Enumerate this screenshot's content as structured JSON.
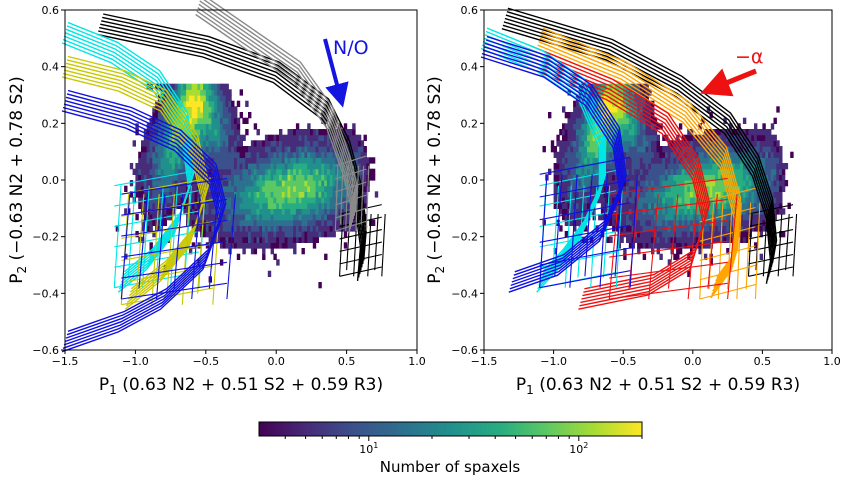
{
  "chart_data": [
    {
      "type": "scatter",
      "panel": "left",
      "title": "",
      "xlabel": "P$_1$ (0.63 N2 + 0.51 S2 + 0.59 R3)",
      "xlabel_main": "P",
      "xlabel_sub": "1",
      "xlabel_rest": " (0.63 N2 + 0.51 S2 + 0.59 R3)",
      "ylabel_main": "P",
      "ylabel_sub": "2",
      "ylabel_rest": " (−0.63 N2 + 0.78 S2)",
      "xlim": [
        -1.5,
        1.0
      ],
      "ylim": [
        -0.6,
        0.6
      ],
      "xticks": [
        "−1.5",
        "−1.0",
        "−0.5",
        "0.0",
        "0.5",
        "1.0"
      ],
      "xtick_values": [
        -1.5,
        -1.0,
        -0.5,
        0.0,
        0.5,
        1.0
      ],
      "yticks": [
        "−0.6",
        "−0.4",
        "−0.2",
        "0.0",
        "0.2",
        "0.4",
        "0.6"
      ],
      "ytick_values": [
        -0.6,
        -0.4,
        -0.2,
        0.0,
        0.2,
        0.4,
        0.6
      ],
      "grid": false,
      "annotation": {
        "text": "N/O",
        "color": "#1515e0",
        "x": 0.45,
        "y": 0.47,
        "arrow_from": [
          0.38,
          0.5
        ],
        "arrow_to": [
          0.49,
          0.29
        ]
      },
      "series": [
        {
          "color": "#000000",
          "band": [
            [
              -1.25,
              0.55
            ],
            [
              -0.5,
              0.47
            ],
            [
              0.0,
              0.38
            ],
            [
              0.35,
              0.25
            ],
            [
              0.5,
              0.1
            ],
            [
              0.58,
              -0.05
            ],
            [
              0.62,
              -0.2
            ],
            [
              0.6,
              -0.32
            ]
          ],
          "grid_end": [
            0.45,
            0.75,
            -0.34,
            -0.12
          ]
        },
        {
          "color": "#8a8a8a",
          "band": [
            [
              -0.55,
              0.62
            ],
            [
              -0.2,
              0.5
            ],
            [
              0.15,
              0.38
            ],
            [
              0.38,
              0.22
            ],
            [
              0.5,
              0.05
            ],
            [
              0.55,
              -0.05
            ],
            [
              0.54,
              -0.15
            ]
          ],
          "grid_end": [
            0.42,
            0.64,
            -0.18,
            0.05
          ]
        },
        {
          "color": "#00e5e5",
          "band": [
            [
              -1.5,
              0.52
            ],
            [
              -1.15,
              0.45
            ],
            [
              -0.85,
              0.35
            ],
            [
              -0.65,
              0.2
            ],
            [
              -0.6,
              0.0
            ],
            [
              -0.7,
              -0.15
            ],
            [
              -0.9,
              -0.28
            ],
            [
              -1.1,
              -0.36
            ]
          ],
          "grid_end": [
            -1.15,
            -0.55,
            -0.38,
            -0.02
          ]
        },
        {
          "color": "#c8c800",
          "band": [
            [
              -1.5,
              0.4
            ],
            [
              -1.1,
              0.35
            ],
            [
              -0.8,
              0.28
            ],
            [
              -0.58,
              0.12
            ],
            [
              -0.5,
              -0.05
            ],
            [
              -0.6,
              -0.2
            ],
            [
              -0.8,
              -0.32
            ],
            [
              -1.05,
              -0.42
            ]
          ],
          "grid_end": [
            -1.1,
            -0.45,
            -0.44,
            -0.05
          ]
        },
        {
          "color": "#1010e0",
          "band": [
            [
              -1.5,
              0.28
            ],
            [
              -1.05,
              0.22
            ],
            [
              -0.7,
              0.14
            ],
            [
              -0.45,
              0.02
            ],
            [
              -0.38,
              -0.12
            ],
            [
              -0.5,
              -0.28
            ],
            [
              -0.8,
              -0.42
            ],
            [
              -1.1,
              -0.5
            ],
            [
              -1.5,
              -0.57
            ]
          ],
          "grid_end": [
            -1.1,
            -0.35,
            -0.42,
            -0.05
          ]
        }
      ]
    },
    {
      "type": "scatter",
      "panel": "right",
      "title": "",
      "xlabel_main": "P",
      "xlabel_sub": "1",
      "xlabel_rest": " (0.63 N2 + 0.51 S2 + 0.59 R3)",
      "ylabel_main": "P",
      "ylabel_sub": "2",
      "ylabel_rest": " (−0.63 N2 + 0.78 S2)",
      "xlim": [
        -1.5,
        1.0
      ],
      "ylim": [
        -0.6,
        0.6
      ],
      "xticks": [
        "−1.5",
        "−1.0",
        "−0.5",
        "0.0",
        "0.5",
        "1.0"
      ],
      "xtick_values": [
        -1.5,
        -1.0,
        -0.5,
        0.0,
        0.5,
        1.0
      ],
      "yticks": [
        "−0.6",
        "−0.4",
        "−0.2",
        "0.0",
        "0.2",
        "0.4",
        "0.6"
      ],
      "ytick_values": [
        -0.6,
        -0.4,
        -0.2,
        0.0,
        0.2,
        0.4,
        0.6
      ],
      "grid": false,
      "annotation": {
        "text": "−α",
        "color": "#ee1111",
        "x": 0.22,
        "y": 0.4,
        "arrow_from": [
          0.35,
          0.37
        ],
        "arrow_to": [
          0.05,
          0.25
        ]
      },
      "series": [
        {
          "color": "#000000",
          "band": [
            [
              -1.35,
              0.57
            ],
            [
              -0.6,
              0.46
            ],
            [
              -0.1,
              0.33
            ],
            [
              0.25,
              0.2
            ],
            [
              0.45,
              0.05
            ],
            [
              0.55,
              -0.1
            ],
            [
              0.58,
              -0.25
            ],
            [
              0.55,
              -0.33
            ]
          ],
          "grid_end": [
            0.4,
            0.72,
            -0.34,
            -0.12
          ]
        },
        {
          "color": "#ffa500",
          "band": [
            [
              -1.1,
              0.5
            ],
            [
              -0.5,
              0.38
            ],
            [
              -0.05,
              0.24
            ],
            [
              0.22,
              0.08
            ],
            [
              0.32,
              -0.1
            ],
            [
              0.3,
              -0.28
            ],
            [
              0.15,
              -0.38
            ]
          ],
          "grid_end": [
            0.05,
            0.45,
            -0.42,
            -0.08
          ]
        },
        {
          "color": "#ee1111",
          "band": [
            [
              -1.2,
              0.44
            ],
            [
              -0.6,
              0.32
            ],
            [
              -0.2,
              0.2
            ],
            [
              0.02,
              0.04
            ],
            [
              0.1,
              -0.12
            ],
            [
              0.0,
              -0.28
            ],
            [
              -0.3,
              -0.37
            ],
            [
              -0.8,
              -0.42
            ]
          ],
          "grid_end": [
            -0.6,
            0.25,
            -0.42,
            -0.05
          ]
        },
        {
          "color": "#00e5e5",
          "band": [
            [
              -1.5,
              0.5
            ],
            [
              -1.1,
              0.42
            ],
            [
              -0.8,
              0.32
            ],
            [
              -0.65,
              0.15
            ],
            [
              -0.65,
              -0.02
            ],
            [
              -0.8,
              -0.18
            ],
            [
              -0.95,
              -0.28
            ],
            [
              -1.1,
              -0.36
            ]
          ],
          "grid_end": [
            -1.1,
            -0.55,
            -0.38,
            -0.02
          ]
        },
        {
          "color": "#1010e0",
          "band": [
            [
              -1.5,
              0.47
            ],
            [
              -1.05,
              0.4
            ],
            [
              -0.75,
              0.3
            ],
            [
              -0.55,
              0.15
            ],
            [
              -0.5,
              -0.02
            ],
            [
              -0.65,
              -0.18
            ],
            [
              -0.95,
              -0.3
            ],
            [
              -1.3,
              -0.36
            ]
          ],
          "grid_end": [
            -1.1,
            -0.45,
            -0.38,
            0.02
          ]
        }
      ]
    }
  ],
  "colorbar": {
    "label": "Number of spaxels",
    "colormap": "viridis",
    "scale": "log",
    "range": [
      3,
      200
    ],
    "tick_labels": [
      {
        "base": "10",
        "exp": "1",
        "value": 10
      },
      {
        "base": "10",
        "exp": "2",
        "value": 100
      }
    ]
  }
}
